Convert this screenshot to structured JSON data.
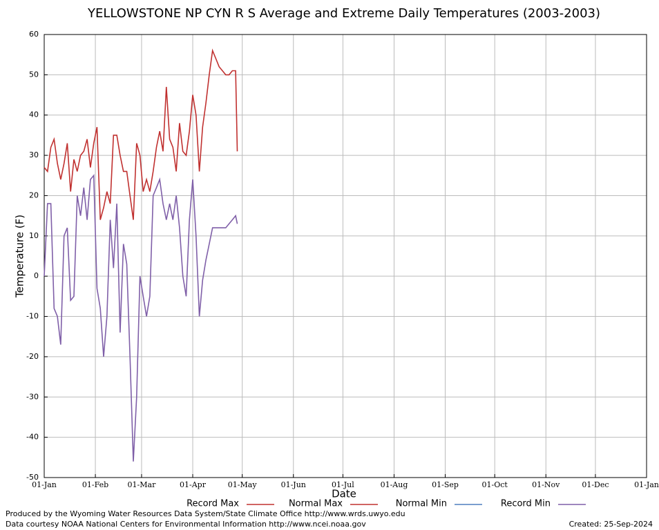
{
  "chart_data": {
    "type": "line",
    "title": "YELLOWSTONE NP CYN R S Average and Extreme Daily Temperatures (2003-2003)",
    "x_label": "Date",
    "y_label": "Temperature (F)",
    "x": [
      0,
      2,
      4,
      6,
      8,
      10,
      12,
      14,
      16,
      18,
      20,
      22,
      24,
      26,
      28,
      30,
      32,
      34,
      36,
      38,
      40,
      42,
      44,
      46,
      48,
      50,
      52,
      54,
      56,
      58,
      60,
      62,
      64,
      66,
      68,
      70,
      72,
      74,
      76,
      78,
      80,
      82,
      84,
      86,
      88,
      90,
      92,
      94,
      96,
      98,
      100,
      102,
      104,
      106,
      108,
      110,
      112,
      114,
      116,
      117
    ],
    "xlim": [
      0,
      365
    ],
    "xticks": [
      {
        "value": 0,
        "label": "01-Jan"
      },
      {
        "value": 31,
        "label": "01-Feb"
      },
      {
        "value": 59,
        "label": "01-Mar"
      },
      {
        "value": 90,
        "label": "01-Apr"
      },
      {
        "value": 120,
        "label": "01-May"
      },
      {
        "value": 151,
        "label": "01-Jun"
      },
      {
        "value": 181,
        "label": "01-Jul"
      },
      {
        "value": 212,
        "label": "01-Aug"
      },
      {
        "value": 243,
        "label": "01-Sep"
      },
      {
        "value": 273,
        "label": "01-Oct"
      },
      {
        "value": 304,
        "label": "01-Nov"
      },
      {
        "value": 334,
        "label": "01-Dec"
      },
      {
        "value": 365,
        "label": "01-Jan"
      }
    ],
    "ylim": [
      -50,
      60
    ],
    "yticks": [
      -50,
      -40,
      -30,
      -20,
      -10,
      0,
      10,
      20,
      30,
      40,
      50,
      60
    ],
    "grid": true,
    "legend": "bottom",
    "series": [
      {
        "name": "Record Max",
        "color": "#c0302f",
        "values": [
          27,
          26,
          32,
          34,
          28,
          24,
          28,
          33,
          21,
          29,
          26,
          30,
          31,
          34,
          27,
          33,
          37,
          14,
          17,
          21,
          18,
          35,
          35,
          30,
          26,
          26,
          20,
          14,
          33,
          30,
          21,
          24,
          21,
          26,
          32,
          36,
          31,
          47,
          34,
          32,
          26,
          38,
          31,
          30,
          36,
          45,
          40,
          26,
          37,
          43,
          50,
          56,
          54,
          52,
          51,
          50,
          50,
          51,
          51,
          31
        ]
      },
      {
        "name": "Normal Max",
        "color": "#c0302f",
        "values": [
          null,
          null,
          null,
          null,
          null,
          null,
          null,
          null,
          null,
          null,
          null,
          null,
          null,
          null,
          null,
          null,
          null,
          null,
          null,
          null,
          null,
          null,
          null,
          null,
          null,
          null,
          null,
          null,
          null,
          null,
          null,
          null,
          null,
          null,
          null,
          null,
          null,
          null,
          null,
          null,
          null,
          null,
          null,
          null,
          null,
          null,
          null,
          null,
          null,
          null,
          null,
          null,
          null,
          null,
          null,
          null,
          null,
          null,
          null,
          null
        ]
      },
      {
        "name": "Normal Min",
        "color": "#4f7fbf",
        "values": [
          null,
          null,
          null,
          null,
          null,
          null,
          null,
          null,
          null,
          null,
          null,
          null,
          null,
          null,
          null,
          null,
          null,
          null,
          null,
          null,
          null,
          null,
          null,
          null,
          null,
          null,
          null,
          null,
          null,
          null,
          null,
          null,
          null,
          null,
          null,
          null,
          null,
          null,
          null,
          null,
          null,
          null,
          null,
          null,
          null,
          null,
          null,
          null,
          null,
          null,
          null,
          null,
          null,
          null,
          null,
          null,
          null,
          null,
          null,
          null
        ]
      },
      {
        "name": "Record Min",
        "color": "#7f5fa8",
        "values": [
          0,
          18,
          18,
          -8,
          -10,
          -17,
          10,
          12,
          -6,
          -5,
          20,
          15,
          22,
          14,
          24,
          25,
          -3,
          -8,
          -20,
          -10,
          14,
          2,
          18,
          -14,
          8,
          3,
          -20,
          -46,
          -30,
          0,
          -5,
          -10,
          -5,
          20,
          22,
          24,
          18,
          14,
          18,
          14,
          20,
          12,
          0,
          -5,
          14,
          24,
          10,
          -10,
          -1,
          4,
          8,
          12,
          12,
          12,
          12,
          12,
          13,
          14,
          15,
          13
        ]
      }
    ],
    "footer_left": [
      "Produced by the Wyoming Water Resources Data System/State Climate Office http://www.wrds.uwyo.edu",
      "Data courtesy NOAA National Centers for Environmental Information http://www.ncei.noaa.gov"
    ],
    "footer_right": "Created:  25-Sep-2024"
  }
}
